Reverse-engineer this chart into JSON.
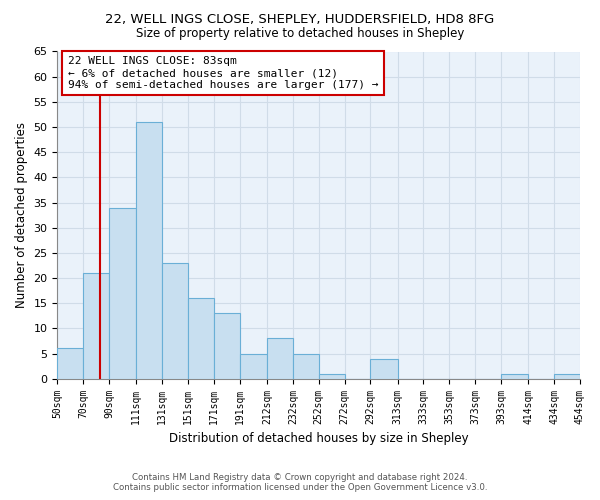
{
  "title1": "22, WELL INGS CLOSE, SHEPLEY, HUDDERSFIELD, HD8 8FG",
  "title2": "Size of property relative to detached houses in Shepley",
  "xlabel": "Distribution of detached houses by size in Shepley",
  "ylabel": "Number of detached properties",
  "bin_labels": [
    "50sqm",
    "70sqm",
    "90sqm",
    "111sqm",
    "131sqm",
    "151sqm",
    "171sqm",
    "191sqm",
    "212sqm",
    "232sqm",
    "252sqm",
    "272sqm",
    "292sqm",
    "313sqm",
    "333sqm",
    "353sqm",
    "373sqm",
    "393sqm",
    "414sqm",
    "434sqm",
    "454sqm"
  ],
  "bin_edges": [
    50,
    70,
    90,
    111,
    131,
    151,
    171,
    191,
    212,
    232,
    252,
    272,
    292,
    313,
    333,
    353,
    373,
    393,
    414,
    434,
    454
  ],
  "counts": [
    6,
    21,
    34,
    51,
    23,
    16,
    13,
    5,
    8,
    5,
    1,
    0,
    4,
    0,
    0,
    0,
    0,
    1,
    0,
    1
  ],
  "bar_color": "#c8dff0",
  "bar_edge_color": "#6aafd6",
  "grid_color": "#d0dce8",
  "vline_x": 83,
  "vline_color": "#cc0000",
  "annotation_line1": "22 WELL INGS CLOSE: 83sqm",
  "annotation_line2": "← 6% of detached houses are smaller (12)",
  "annotation_line3": "94% of semi-detached houses are larger (177) →",
  "annotation_box_edge": "#cc0000",
  "ylim": [
    0,
    65
  ],
  "yticks": [
    0,
    5,
    10,
    15,
    20,
    25,
    30,
    35,
    40,
    45,
    50,
    55,
    60,
    65
  ],
  "footer1": "Contains HM Land Registry data © Crown copyright and database right 2024.",
  "footer2": "Contains public sector information licensed under the Open Government Licence v3.0.",
  "bg_color": "#eaf2fa"
}
